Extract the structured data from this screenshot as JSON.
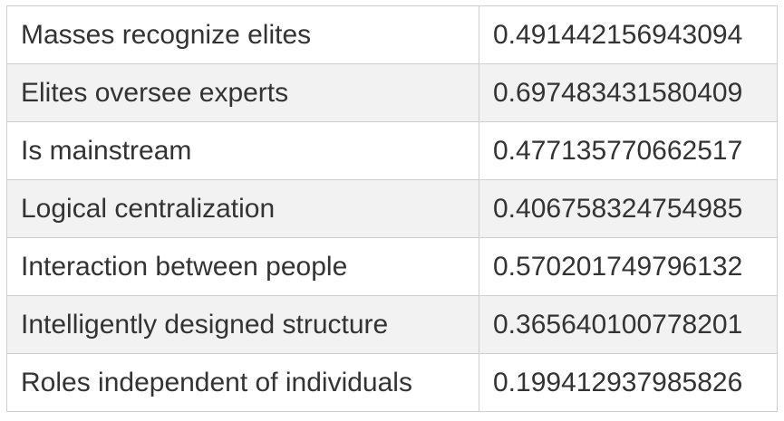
{
  "table": {
    "rows": [
      [
        "Masses recognize elites",
        "0.491442156943094"
      ],
      [
        "Elites oversee experts",
        "0.697483431580409"
      ],
      [
        "Is mainstream",
        "0.477135770662517"
      ],
      [
        "Logical centralization",
        "0.406758324754985"
      ],
      [
        "Interaction between people",
        "0.570201749796132"
      ],
      [
        "Intelligently designed structure",
        "0.365640100778201"
      ],
      [
        "Roles independent of individuals",
        "0.199412937985826"
      ]
    ]
  }
}
